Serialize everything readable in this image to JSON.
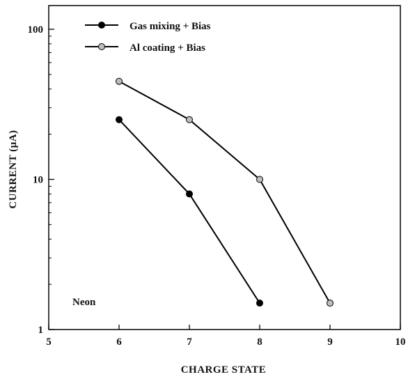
{
  "chart_data": {
    "type": "line",
    "xlabel": "CHARGE STATE",
    "ylabel": "CURRENT (µA)",
    "xlim": [
      5,
      10
    ],
    "ylim": [
      1,
      200
    ],
    "y_scale": "log",
    "x_ticks": [
      "5",
      "6",
      "7",
      "8",
      "9",
      "10"
    ],
    "y_ticks": [
      "1",
      "10",
      "100"
    ],
    "grid": false,
    "legend_position": "top-left",
    "annotation": "Neon",
    "series": [
      {
        "name": "Gas mixing + Bias",
        "marker_color": "#000000",
        "line_color": "#000000",
        "x": [
          6,
          7,
          8
        ],
        "y": [
          25,
          8,
          1.5
        ]
      },
      {
        "name": "Al coating + Bias",
        "marker_color": "#bdbdbd",
        "line_color": "#000000",
        "x": [
          6,
          7,
          8,
          9
        ],
        "y": [
          45,
          25,
          10,
          1.5
        ]
      }
    ]
  }
}
